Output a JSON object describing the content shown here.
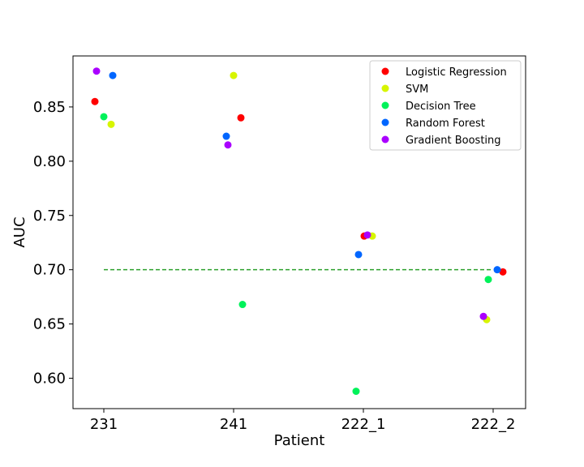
{
  "chart_data": {
    "type": "scatter",
    "xlabel": "Patient",
    "ylabel": "AUC",
    "categories": [
      "231",
      "241",
      "222_1",
      "222_2"
    ],
    "yticks": [
      "0.60",
      "0.65",
      "0.70",
      "0.75",
      "0.80",
      "0.85"
    ],
    "ylim": [
      0.572,
      0.897
    ],
    "grid": false,
    "legend_position": "top-right",
    "reference_line": {
      "y": 0.7,
      "x_from": "231",
      "x_to": "222_2",
      "style": "dashed",
      "color": "#2ca02c"
    },
    "series": [
      {
        "name": "Logistic Regression",
        "color": "#ff0000",
        "points": [
          {
            "x": "231",
            "y": 0.855
          },
          {
            "x": "241",
            "y": 0.84
          },
          {
            "x": "222_1",
            "y": 0.731
          },
          {
            "x": "222_2",
            "y": 0.698
          }
        ]
      },
      {
        "name": "SVM",
        "color": "#d7f500",
        "points": [
          {
            "x": "231",
            "y": 0.834
          },
          {
            "x": "241",
            "y": 0.879
          },
          {
            "x": "222_1",
            "y": 0.731
          },
          {
            "x": "222_2",
            "y": 0.654
          }
        ]
      },
      {
        "name": "Decision Tree",
        "color": "#00f25a",
        "points": [
          {
            "x": "231",
            "y": 0.841
          },
          {
            "x": "241",
            "y": 0.668
          },
          {
            "x": "222_1",
            "y": 0.588
          },
          {
            "x": "222_2",
            "y": 0.691
          }
        ]
      },
      {
        "name": "Random Forest",
        "color": "#0066ff",
        "points": [
          {
            "x": "231",
            "y": 0.879
          },
          {
            "x": "241",
            "y": 0.823
          },
          {
            "x": "222_1",
            "y": 0.714
          },
          {
            "x": "222_2",
            "y": 0.7
          }
        ]
      },
      {
        "name": "Gradient Boosting",
        "color": "#aa00ff",
        "points": [
          {
            "x": "231",
            "y": 0.883
          },
          {
            "x": "241",
            "y": 0.815
          },
          {
            "x": "222_1",
            "y": 0.732
          },
          {
            "x": "222_2",
            "y": 0.657
          }
        ]
      }
    ]
  }
}
